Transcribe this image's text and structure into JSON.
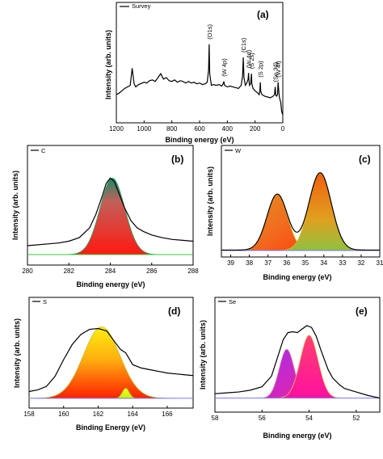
{
  "chart_data": [
    {
      "id": "a",
      "type": "line",
      "panel_letter": "(a)",
      "legend": "Survey",
      "xlabel": "Binding energy (eV)",
      "ylabel": "Intensity (arb. units)",
      "xlim": [
        1200,
        0
      ],
      "xticks": [
        "1200",
        "1000",
        "800",
        "600",
        "400",
        "200",
        "0"
      ],
      "annotations": [
        {
          "text": "(O1s)",
          "x": 531
        },
        {
          "text": "(C1s)",
          "x": 285
        },
        {
          "text": "(W 4d)",
          "x": 247
        },
        {
          "text": "(W 4p)",
          "x": 425
        },
        {
          "text": "(S 2s)",
          "x": 226
        },
        {
          "text": "(S 2p)",
          "x": 162
        },
        {
          "text": "(Se 3d)",
          "x": 55
        },
        {
          "text": "(W 4f)",
          "x": 34
        }
      ],
      "series": [
        {
          "x": [
            1200,
            1180,
            1160,
            1140,
            1100,
            1086,
            1072,
            1060,
            1040,
            1000,
            980,
            960,
            940,
            920,
            900,
            880,
            860,
            840,
            820,
            800,
            780,
            760,
            740,
            720,
            700,
            680,
            660,
            640,
            620,
            600,
            580,
            560,
            545,
            535,
            531,
            527,
            515,
            500,
            480,
            460,
            440,
            430,
            425,
            420,
            400,
            380,
            360,
            340,
            320,
            300,
            290,
            285,
            280,
            270,
            260,
            250,
            247,
            244,
            240,
            232,
            229,
            226,
            223,
            215,
            200,
            180,
            170,
            165,
            162,
            159,
            150,
            130,
            110,
            90,
            80,
            70,
            60,
            55,
            50,
            45,
            38,
            34,
            30,
            25,
            15,
            8,
            0
          ],
          "y": [
            0.28,
            0.3,
            0.33,
            0.36,
            0.4,
            0.62,
            0.42,
            0.38,
            0.41,
            0.44,
            0.43,
            0.46,
            0.47,
            0.45,
            0.5,
            0.55,
            0.48,
            0.5,
            0.46,
            0.45,
            0.47,
            0.44,
            0.46,
            0.45,
            0.43,
            0.45,
            0.43,
            0.44,
            0.42,
            0.43,
            0.41,
            0.42,
            0.44,
            0.6,
            0.93,
            0.55,
            0.4,
            0.41,
            0.4,
            0.41,
            0.39,
            0.42,
            0.45,
            0.4,
            0.38,
            0.39,
            0.38,
            0.37,
            0.36,
            0.4,
            0.52,
            0.76,
            0.5,
            0.4,
            0.43,
            0.48,
            0.56,
            0.46,
            0.4,
            0.42,
            0.48,
            0.55,
            0.42,
            0.36,
            0.33,
            0.3,
            0.28,
            0.34,
            0.44,
            0.32,
            0.28,
            0.26,
            0.25,
            0.24,
            0.25,
            0.26,
            0.28,
            0.38,
            0.27,
            0.26,
            0.28,
            0.44,
            0.35,
            0.25,
            0.18,
            0.06,
            0.02
          ]
        }
      ]
    },
    {
      "id": "b",
      "type": "line",
      "panel_letter": "(b)",
      "legend": "C",
      "xlabel": "Binding energy (eV)",
      "ylabel": "Intensity (arb. units)",
      "xlim": [
        280,
        288
      ],
      "xticks": [
        "280",
        "282",
        "284",
        "286",
        "288"
      ],
      "envelope": {
        "x": [
          280,
          281,
          281.5,
          282,
          282.5,
          283,
          283.3,
          283.6,
          283.8,
          284,
          284.2,
          284.4,
          284.7,
          285,
          285.3,
          285.6,
          286,
          286.5,
          287,
          287.5,
          288
        ],
        "y": [
          0.1,
          0.12,
          0.13,
          0.15,
          0.19,
          0.3,
          0.45,
          0.65,
          0.8,
          0.86,
          0.82,
          0.7,
          0.52,
          0.38,
          0.3,
          0.26,
          0.22,
          0.19,
          0.17,
          0.16,
          0.15
        ]
      },
      "peaks": [
        {
          "center": 284.1,
          "amplitude": 0.86,
          "sigma": 0.6
        }
      ],
      "baseline": 0.0
    },
    {
      "id": "c",
      "type": "line",
      "panel_letter": "(c)",
      "legend": "W",
      "xlabel": "Binding energy (eV)",
      "ylabel": "Intensity (arb. units)",
      "xlim": [
        39.5,
        31
      ],
      "xticks": [
        "39",
        "38",
        "37",
        "36",
        "35",
        "34",
        "33",
        "32",
        "31"
      ],
      "peaks": [
        {
          "center": 36.5,
          "amplitude": 0.63,
          "sigma": 0.55
        },
        {
          "center": 34.2,
          "amplitude": 0.87,
          "sigma": 0.6
        }
      ],
      "baseline": 0.0
    },
    {
      "id": "d",
      "type": "line",
      "panel_letter": "(d)",
      "legend": "S",
      "xlabel": "Binding Energy (eV)",
      "ylabel": "Intensity (arb. units)",
      "xlim": [
        158,
        167.5
      ],
      "xticks": [
        "158",
        "160",
        "162",
        "164",
        "166"
      ],
      "envelope": {
        "x": [
          158,
          158.5,
          159,
          159.5,
          160,
          160.5,
          161,
          161.5,
          162,
          162.5,
          163,
          163.3,
          163.6,
          164,
          164.5,
          165,
          165.5,
          166,
          166.5,
          167,
          167.5
        ],
        "y": [
          0.12,
          0.14,
          0.18,
          0.3,
          0.5,
          0.68,
          0.8,
          0.86,
          0.87,
          0.84,
          0.7,
          0.62,
          0.58,
          0.44,
          0.4,
          0.38,
          0.36,
          0.34,
          0.33,
          0.32,
          0.31
        ]
      },
      "peaks": [
        {
          "center": 162.2,
          "amplitude": 0.85,
          "sigma": 1.05
        },
        {
          "center": 163.6,
          "amplitude": 0.12,
          "sigma": 0.2
        }
      ],
      "baseline": 0.04
    },
    {
      "id": "e",
      "type": "line",
      "panel_letter": "(e)",
      "legend": "Se",
      "xlabel": "Binding energy (eV)",
      "ylabel": "Intensity (arb. units)",
      "xlim": [
        58,
        51
      ],
      "xticks": [
        "58",
        "56",
        "54",
        "52"
      ],
      "envelope": {
        "x": [
          58,
          57.5,
          57,
          56.5,
          56,
          55.6,
          55.3,
          55.1,
          54.9,
          54.7,
          54.5,
          54.3,
          54.1,
          53.9,
          53.7,
          53.5,
          53.2,
          53,
          52.7,
          52.5,
          52,
          51.5,
          51
        ],
        "y": [
          0.1,
          0.11,
          0.12,
          0.14,
          0.18,
          0.3,
          0.55,
          0.72,
          0.8,
          0.81,
          0.8,
          0.84,
          0.88,
          0.86,
          0.76,
          0.6,
          0.38,
          0.28,
          0.2,
          0.16,
          0.12,
          0.08,
          0.05
        ]
      },
      "peaks": [
        {
          "center": 54.95,
          "amplitude": 0.56,
          "sigma": 0.32
        },
        {
          "center": 54.0,
          "amplitude": 0.72,
          "sigma": 0.38
        }
      ],
      "baseline": 0.05
    }
  ]
}
